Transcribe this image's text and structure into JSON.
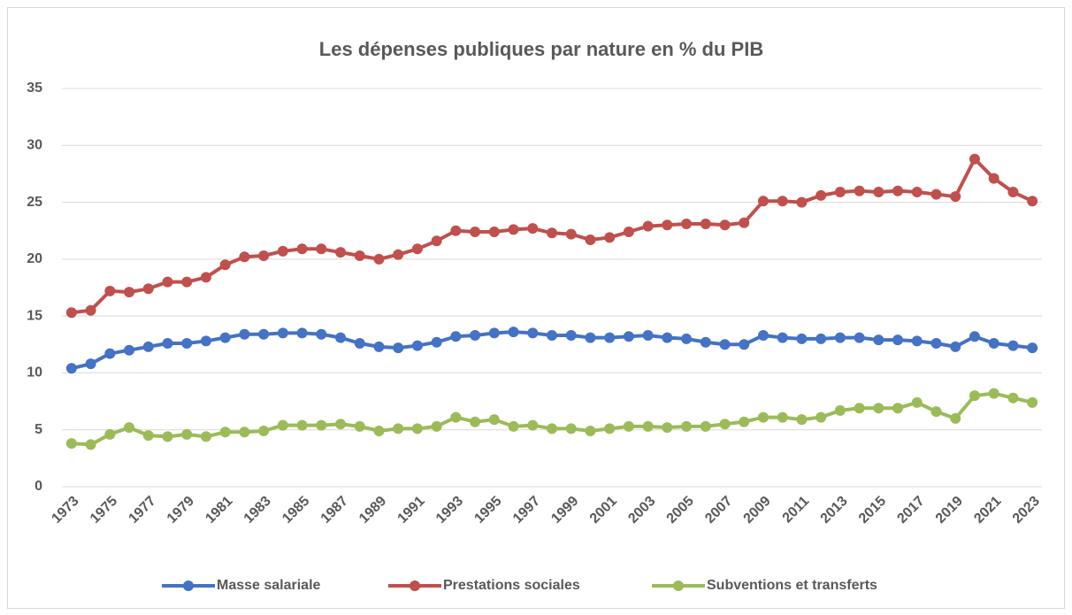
{
  "chart_data": {
    "type": "line",
    "title": "Les dépenses publiques par nature en % du PIB",
    "categories": [
      "1973",
      null,
      "1975",
      null,
      "1977",
      null,
      "1979",
      null,
      "1981",
      null,
      "1983",
      null,
      "1985",
      null,
      "1987",
      null,
      "1989",
      null,
      "1991",
      null,
      "1993",
      null,
      "1995",
      null,
      "1997",
      null,
      "1999",
      null,
      "2001",
      null,
      "2003",
      null,
      "2005",
      null,
      "2007",
      null,
      "2009",
      null,
      "2011",
      null,
      "2013",
      null,
      "2015",
      null,
      "2017",
      null,
      "2019",
      null,
      "2021",
      null,
      "2023"
    ],
    "series": [
      {
        "name": "Masse salariale",
        "color": "#4472c4",
        "values": [
          10.4,
          10.8,
          11.7,
          12.0,
          12.3,
          12.6,
          12.6,
          12.8,
          13.1,
          13.4,
          13.4,
          13.5,
          13.5,
          13.4,
          13.1,
          12.6,
          12.3,
          12.2,
          12.4,
          12.7,
          13.2,
          13.3,
          13.5,
          13.6,
          13.5,
          13.3,
          13.3,
          13.1,
          13.1,
          13.2,
          13.3,
          13.1,
          13.0,
          12.7,
          12.5,
          12.5,
          13.3,
          13.1,
          13.0,
          13.0,
          13.1,
          13.1,
          12.9,
          12.9,
          12.8,
          12.6,
          12.3,
          13.2,
          12.6,
          12.4,
          12.2
        ]
      },
      {
        "name": "Prestations sociales",
        "color": "#c0504d",
        "values": [
          15.3,
          15.5,
          17.2,
          17.1,
          17.4,
          18.0,
          18.0,
          18.4,
          19.5,
          20.2,
          20.3,
          20.7,
          20.9,
          20.9,
          20.6,
          20.3,
          20.0,
          20.4,
          20.9,
          21.6,
          22.5,
          22.4,
          22.4,
          22.6,
          22.7,
          22.3,
          22.2,
          21.7,
          21.9,
          22.4,
          22.9,
          23.0,
          23.1,
          23.1,
          23.0,
          23.2,
          25.1,
          25.1,
          25.0,
          25.6,
          25.9,
          26.0,
          25.9,
          26.0,
          25.9,
          25.7,
          25.5,
          28.8,
          27.1,
          25.9,
          25.1
        ]
      },
      {
        "name": "Subventions et transferts",
        "color": "#9bbb59",
        "values": [
          3.8,
          3.7,
          4.6,
          5.2,
          4.5,
          4.4,
          4.6,
          4.4,
          4.8,
          4.8,
          4.9,
          5.4,
          5.4,
          5.4,
          5.5,
          5.3,
          4.9,
          5.1,
          5.1,
          5.3,
          6.1,
          5.7,
          5.9,
          5.3,
          5.4,
          5.1,
          5.1,
          4.9,
          5.1,
          5.3,
          5.3,
          5.2,
          5.3,
          5.3,
          5.5,
          5.7,
          6.1,
          6.1,
          5.9,
          6.1,
          6.7,
          6.9,
          6.9,
          6.9,
          7.4,
          6.6,
          6.0,
          8.0,
          8.2,
          7.8,
          7.4
        ]
      }
    ],
    "ylim": [
      0,
      35
    ],
    "yticks": [
      0,
      5,
      10,
      15,
      20,
      25,
      30,
      35
    ],
    "grid": true,
    "legend": "bottom"
  }
}
